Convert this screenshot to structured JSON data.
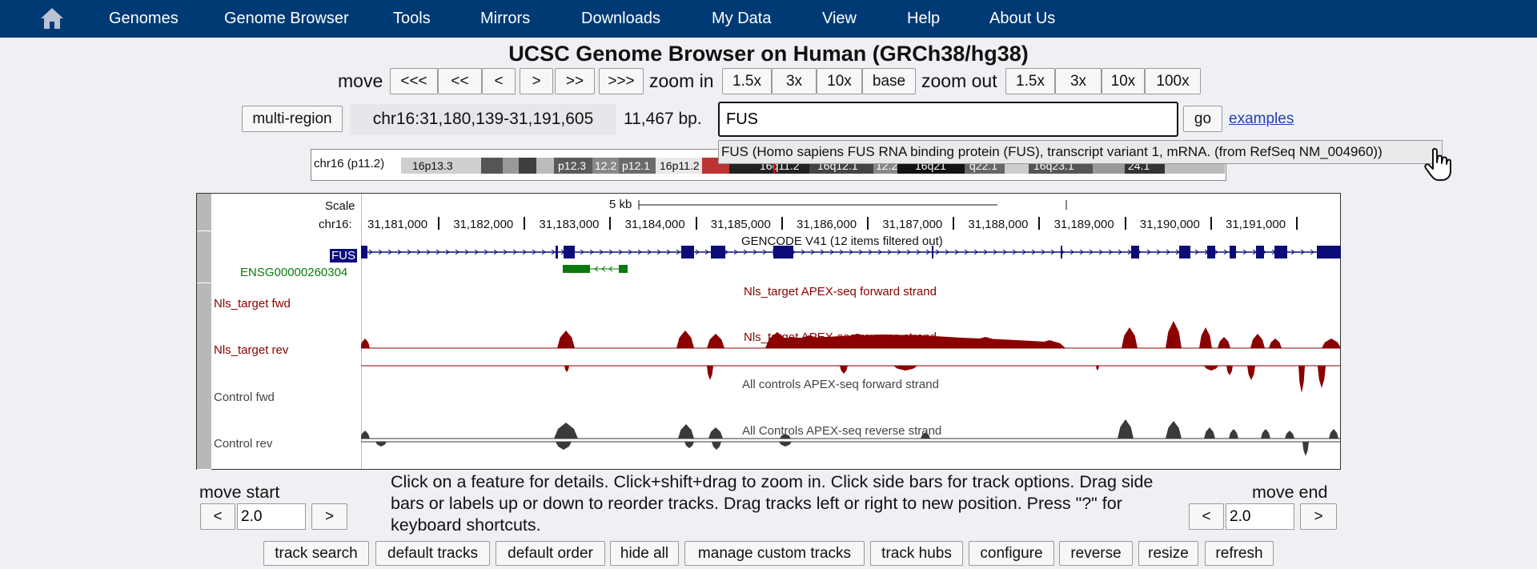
{
  "nav": {
    "items": [
      "Genomes",
      "Genome Browser",
      "Tools",
      "Mirrors",
      "Downloads",
      "My Data",
      "View",
      "Help",
      "About Us"
    ]
  },
  "title": "UCSC Genome Browser on Human (GRCh38/hg38)",
  "controls": {
    "move_label": "move",
    "move_buttons": [
      "<<<",
      "<<",
      "<",
      ">",
      ">>",
      ">>>"
    ],
    "zoom_in_label": "zoom in",
    "zoom_in_buttons": [
      "1.5x",
      "3x",
      "10x",
      "base"
    ],
    "zoom_out_label": "zoom out",
    "zoom_out_buttons": [
      "1.5x",
      "3x",
      "10x",
      "100x"
    ]
  },
  "position": {
    "multi_region": "multi-region",
    "display": "chr16:31,180,139-31,191,605",
    "size": "11,467 bp.",
    "search_value": "FUS",
    "go": "go",
    "examples": "examples"
  },
  "autocomplete": {
    "suggestion": "FUS (Homo sapiens FUS RNA binding protein (FUS), transcript variant 1, mRNA. (from RefSeq NM_004960))"
  },
  "ideogram": {
    "label": "chr16 (p11.2)",
    "bands": [
      "16p13.3",
      "p12.3",
      "12.2",
      "p12.1",
      "16p11.2",
      "16q11.2",
      "16q12.1",
      "12.2",
      "16q21",
      "q22.1",
      "16q23.1",
      "24.1"
    ]
  },
  "tracks": {
    "scale_label": "Scale",
    "scale_bar": "5 kb",
    "chrom_label": "chr16:",
    "ruler_ticks": [
      "31,181,000",
      "31,182,000",
      "31,183,000",
      "31,184,000",
      "31,185,000",
      "31,186,000",
      "31,187,000",
      "31,188,000",
      "31,189,000",
      "31,190,000",
      "31,191,000"
    ],
    "gencode_title": "GENCODE V41 (12 items filtered out)",
    "gene_fus": "FUS",
    "gene_ensg": "ENSG00000260304",
    "nls_fwd_title": "Nls_target APEX-seq forward strand",
    "nls_fwd_label": "Nls_target fwd",
    "nls_rev_title": "Nls_target APEX-seq reverse strand",
    "nls_rev_label": "Nls_target rev",
    "ctrl_fwd_title": "All controls APEX-seq forward strand",
    "ctrl_fwd_label": "Control fwd",
    "ctrl_rev_title": "All Controls APEX-seq reverse strand",
    "ctrl_rev_label": "Control rev"
  },
  "bottom": {
    "move_start": "move start",
    "move_end": "move end",
    "start_value": "2.0",
    "end_value": "2.0",
    "left_btn": "<",
    "right_btn": ">",
    "help": "Click on a feature for details. Click+shift+drag to zoom in. Click side bars for track options. Drag side bars or labels up or down to reorder tracks. Drag tracks left or right to new position. Press \"?\" for keyboard shortcuts."
  },
  "toolbar": [
    "track search",
    "default tracks",
    "default order",
    "hide all",
    "manage custom tracks",
    "track hubs",
    "configure",
    "reverse",
    "resize",
    "refresh"
  ],
  "colors": {
    "nav_bg": "#003a74",
    "gene": "#0c0c78",
    "gene_alt": "#0a7a0a",
    "nls": "#8b0000",
    "control": "#3a3a3a"
  }
}
